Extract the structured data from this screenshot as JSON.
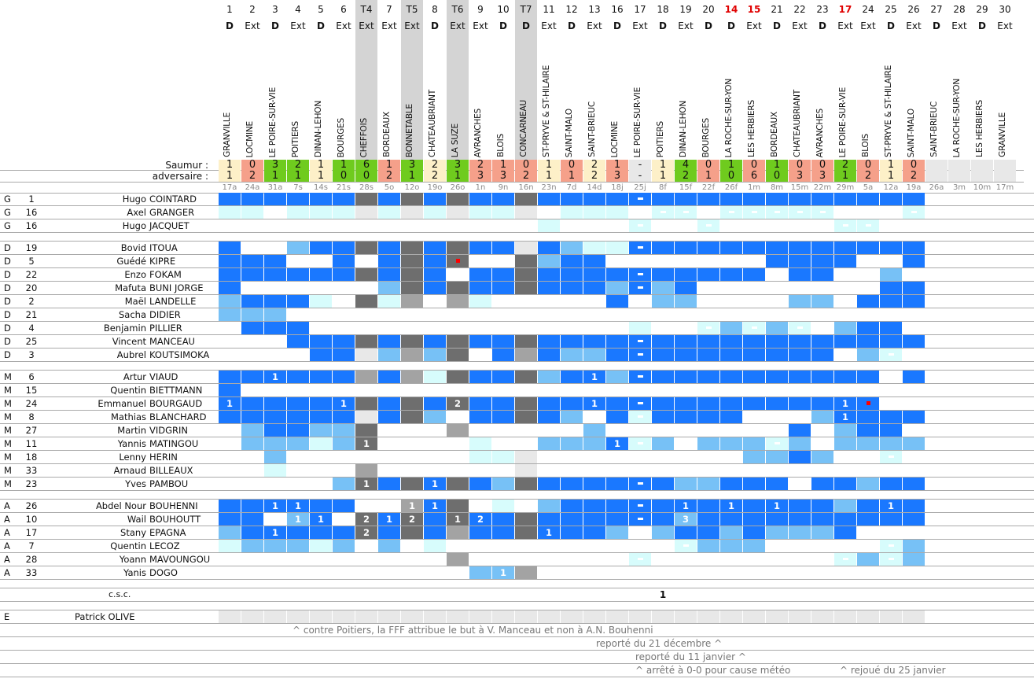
{
  "labels": {
    "saumur": "Saumur :",
    "adversaire": "adversaire :",
    "csc": "c.s.c.",
    "csc_value": "1"
  },
  "colors": {
    "B": "#1a78ff",
    "L": "#77c1f6",
    "C": "#d7fcfc",
    "D": "#6e6e6e",
    "M": "#a3a3a3",
    "E": "#e8e8e8",
    "win": "#6fcb1e",
    "draw": "#fdf0c8",
    "loss": "#f5a08a",
    "none": "#e8e8e8",
    "tour": "#d4d4d4"
  },
  "matches": [
    {
      "num": "1",
      "venue": "D",
      "opp": "GRANVILLE",
      "s": "1",
      "a": "1",
      "date": "17a"
    },
    {
      "num": "2",
      "venue": "Ext",
      "opp": "LOCMINE",
      "s": "0",
      "a": "2",
      "date": "24a"
    },
    {
      "num": "3",
      "venue": "D",
      "opp": "LE POIRE-SUR-VIE",
      "s": "3",
      "a": "1",
      "date": "31a"
    },
    {
      "num": "4",
      "venue": "Ext",
      "opp": "POITIERS",
      "s": "2",
      "a": "1",
      "date": "7s"
    },
    {
      "num": "5",
      "venue": "D",
      "opp": "DINAN-LEHON",
      "s": "1",
      "a": "1",
      "date": "14s"
    },
    {
      "num": "6",
      "venue": "Ext",
      "opp": "BOURGES",
      "s": "1",
      "a": "0",
      "date": "21s"
    },
    {
      "num": "T4",
      "venue": "Ext",
      "opp": "CHEFFOIS",
      "s": "6",
      "a": "0",
      "date": "28s",
      "tour": true
    },
    {
      "num": "7",
      "venue": "Ext",
      "opp": "BORDEAUX",
      "s": "1",
      "a": "2",
      "date": "5o"
    },
    {
      "num": "T5",
      "venue": "Ext",
      "opp": "BONNETABLE",
      "s": "3",
      "a": "1",
      "date": "12o",
      "tour": true
    },
    {
      "num": "8",
      "venue": "D",
      "opp": "CHATEAUBRIANT",
      "s": "2",
      "a": "2",
      "date": "19o"
    },
    {
      "num": "T6",
      "venue": "Ext",
      "opp": "LA SUZE",
      "s": "3",
      "a": "1",
      "date": "26o",
      "tour": true
    },
    {
      "num": "9",
      "venue": "Ext",
      "opp": "AVRANCHES",
      "s": "2",
      "a": "3",
      "date": "1n"
    },
    {
      "num": "10",
      "venue": "D",
      "opp": "BLOIS",
      "s": "1",
      "a": "3",
      "date": "9n"
    },
    {
      "num": "T7",
      "venue": "D",
      "opp": "CONCARNEAU",
      "s": "0",
      "a": "2",
      "date": "16n",
      "tour": true
    },
    {
      "num": "11",
      "venue": "Ext",
      "opp": "ST-PRYVE & ST-HILAIRE",
      "s": "1",
      "a": "1",
      "date": "23n"
    },
    {
      "num": "12",
      "venue": "D",
      "opp": "SAINT-MALO",
      "s": "0",
      "a": "1",
      "date": "7d"
    },
    {
      "num": "13",
      "venue": "Ext",
      "opp": "SAINT-BRIEUC",
      "s": "2",
      "a": "2",
      "date": "14d"
    },
    {
      "num": "16",
      "venue": "D",
      "opp": "LOCMINE",
      "s": "1",
      "a": "3",
      "date": "18j"
    },
    {
      "num": "17",
      "venue": "Ext",
      "opp": "LE POIRE-SUR-VIE",
      "s": "-",
      "a": "-",
      "date": "25j"
    },
    {
      "num": "18",
      "venue": "D",
      "opp": "POITIERS",
      "s": "1",
      "a": "1",
      "date": "8f"
    },
    {
      "num": "19",
      "venue": "Ext",
      "opp": "DINAN-LEHON",
      "s": "4",
      "a": "2",
      "date": "15f"
    },
    {
      "num": "20",
      "venue": "D",
      "opp": "BOURGES",
      "s": "0",
      "a": "1",
      "date": "22f"
    },
    {
      "num": "14",
      "venue": "D",
      "opp": "LA ROCHE-SUR-YON",
      "s": "1",
      "a": "0",
      "date": "26f",
      "red": true
    },
    {
      "num": "15",
      "venue": "Ext",
      "opp": "LES HERBIERS",
      "s": "0",
      "a": "6",
      "date": "1m",
      "red": true
    },
    {
      "num": "21",
      "venue": "D",
      "opp": "BORDEAUX",
      "s": "1",
      "a": "0",
      "date": "8m"
    },
    {
      "num": "22",
      "venue": "Ext",
      "opp": "CHATEAUBRIANT",
      "s": "0",
      "a": "3",
      "date": "15m"
    },
    {
      "num": "23",
      "venue": "D",
      "opp": "AVRANCHES",
      "s": "0",
      "a": "3",
      "date": "22m"
    },
    {
      "num": "17",
      "venue": "Ext",
      "opp": "LE POIRE-SUR-VIE",
      "s": "2",
      "a": "1",
      "date": "29m",
      "red": true
    },
    {
      "num": "24",
      "venue": "Ext",
      "opp": "BLOIS",
      "s": "0",
      "a": "2",
      "date": "5a"
    },
    {
      "num": "25",
      "venue": "D",
      "opp": "ST-PRYVE & ST-HILAIRE",
      "s": "1",
      "a": "1",
      "date": "12a"
    },
    {
      "num": "26",
      "venue": "Ext",
      "opp": "SAINT-MALO",
      "s": "0",
      "a": "2",
      "date": "19a"
    },
    {
      "num": "27",
      "venue": "D",
      "opp": "SAINT-BRIEUC",
      "s": "",
      "a": "",
      "date": "26a"
    },
    {
      "num": "28",
      "venue": "Ext",
      "opp": "LA ROCHE-SUR-YON",
      "s": "",
      "a": "",
      "date": "3m"
    },
    {
      "num": "29",
      "venue": "D",
      "opp": "LES HERBIERS",
      "s": "",
      "a": "",
      "date": "10m"
    },
    {
      "num": "30",
      "venue": "Ext",
      "opp": "GRANVILLE",
      "s": "",
      "a": "",
      "date": "17m"
    }
  ],
  "groups": [
    [
      {
        "pos": "G",
        "num": "1",
        "first": "Hugo",
        "last": "COINTARD",
        "cells": "BBBBBBDBDBDBBDBBBBBBBBBBBBBBBBB",
        "marks": {
          "18": "-"
        }
      },
      {
        "pos": "G",
        "num": "16",
        "first": "Axel",
        "last": "GRANGER",
        "cells": "CC.CCCECECECCE.CCC.CC.CCCCC...C",
        "marks": {
          "19": "-",
          "20": "-",
          "22": "-",
          "23": "-",
          "24": "-",
          "25": "-",
          "26": "-",
          "30": "-"
        }
      },
      {
        "pos": "G",
        "num": "16",
        "first": "Hugo",
        "last": "JACQUET",
        "cells": "..............C...C..C.....CC..",
        "marks": {
          "18": "-",
          "21": "-",
          "27": "-",
          "28": "-"
        }
      }
    ],
    [
      {
        "pos": "D",
        "num": "19",
        "first": "Bovid",
        "last": "ITOUA",
        "cells": "B..LBBDBDBDBBEBLCCBBBBBBBBBBBBB",
        "marks": {
          "18": "-"
        }
      },
      {
        "pos": "D",
        "num": "5",
        "first": "Guédé",
        "last": "KIPRE",
        "cells": "BBB..B.BDBD..DLBB.......BBBB..B",
        "marks": {
          "10": "*"
        }
      },
      {
        "pos": "D",
        "num": "22",
        "first": "Enzo",
        "last": "FOKAM",
        "cells": "BBBBBBDBDB.BBDBBBBBBBBBB.BB..L",
        "marks": {
          "18": "-"
        }
      },
      {
        "pos": "D",
        "num": "20",
        "first": "Mafuta",
        "last": "BUNI JORGE",
        "cells": "B......LDBDBBDBBBLBLB........BB",
        "marks": {
          "18": "-"
        }
      },
      {
        "pos": "D",
        "num": "2",
        "first": "Maël",
        "last": "LANDELLE",
        "cells": "LBBBC.DCM.MC.....B.LL....LL.BBB",
        "marks": {}
      },
      {
        "pos": "D",
        "num": "21",
        "first": "Sacha",
        "last": "DIDIER",
        "cells": "LLL............................",
        "marks": {}
      },
      {
        "pos": "D",
        "num": "4",
        "first": "Benjamin",
        "last": "PILLIER",
        "cells": ".BBB..............C..CLCLC.LBB.",
        "marks": {
          "21": "-",
          "23": "-",
          "25": "-"
        }
      },
      {
        "pos": "D",
        "num": "25",
        "first": "Vincent",
        "last": "MANCEAU",
        "cells": "...BBBDBDBDBBDBBBBBBBBBBBBBBBBB",
        "marks": {
          "18": "-"
        }
      },
      {
        "pos": "D",
        "num": "3",
        "first": "Aubrel",
        "last": "KOUTSIMOKA",
        "cells": "....BBELMLD.BMBLLBBBBBBBBBB.LC.",
        "marks": {
          "18": "-",
          "29": "-"
        }
      }
    ],
    [
      {
        "pos": "M",
        "num": "6",
        "first": "Artur",
        "last": "VIAUD",
        "cells": "BBBBBBMBMCDBBDLBBLBBBBBBBBBBB.B",
        "marks": {
          "2": "1",
          "16": "1",
          "18": "-"
        }
      },
      {
        "pos": "M",
        "num": "15",
        "first": "Quentin",
        "last": "BIETTMANN",
        "cells": "B..............................",
        "marks": {}
      },
      {
        "pos": "M",
        "num": "24",
        "first": "Emmanuel",
        "last": "BOURGAUD",
        "cells": "BBBBBBDBDBDBBDBBBBBBBBBBBBBBB..",
        "marks": {
          "0": "1",
          "5": "1",
          "10": "2",
          "16": "1",
          "18": "-",
          "27": "1",
          "28": "*"
        }
      },
      {
        "pos": "M",
        "num": "8",
        "first": "Mathias",
        "last": "BLANCHARD",
        "cells": "BBBBBBEBDL.BBDBL.BCBBBB...LBBBB",
        "marks": {
          "18": "-",
          "27": "1"
        }
      },
      {
        "pos": "M",
        "num": "27",
        "first": "Martin",
        "last": "VIDGRIN",
        "cells": ".LBBLLD...M.....L........B.LBB.",
        "marks": {}
      },
      {
        "pos": "M",
        "num": "11",
        "first": "Yannis",
        "last": "MATINGOU",
        "cells": ".LLLCLD....C..LLLBCL.LLLCL.LLLL",
        "marks": {
          "6": "1",
          "17": "1",
          "18": "-",
          "24": "-"
        }
      },
      {
        "pos": "M",
        "num": "18",
        "first": "Lenny",
        "last": "HERIN",
        "cells": "..L........CCE.........LLBL..C.",
        "marks": {
          "29": "-"
        }
      },
      {
        "pos": "M",
        "num": "33",
        "first": "Arnaud",
        "last": "BILLEAUX",
        "cells": "..C...M......E.................",
        "marks": {}
      },
      {
        "pos": "M",
        "num": "23",
        "first": "Yves",
        "last": "PAMBOU",
        "cells": ".....LDBDBDBLDBBBBBBLLBBB.BBLBB",
        "marks": {
          "6": "1",
          "9": "1",
          "18": "-"
        }
      }
    ],
    [
      {
        "pos": "A",
        "num": "26",
        "first": "Abdel Nour",
        "last": "BOUHENNI",
        "cells": "BBBBBB..MBD.C.LBBBBBBBBBBBBLBBB",
        "marks": {
          "2": "1",
          "3": "1",
          "8": "1",
          "9": "1",
          "18": "-",
          "20": "1",
          "22": "1",
          "24": "1",
          "29": "1"
        }
      },
      {
        "pos": "A",
        "num": "10",
        "first": "Wail",
        "last": "BOUHOUTT",
        "cells": "BB.LB.DBDBDBBDBBBBBBLBBBBBBBBBB",
        "marks": {
          "3": "1",
          "4": "1",
          "6": "2",
          "7": "1",
          "8": "2",
          "10": "1",
          "11": "2",
          "18": "-",
          "20": "3"
        }
      },
      {
        "pos": "A",
        "num": "17",
        "first": "Stany",
        "last": "EPAGNA",
        "cells": "LBBBBBDBDBMBBDBBBL.LBBLBLLLB...",
        "marks": {
          "2": "1",
          "6": "2",
          "14": "1"
        }
      },
      {
        "pos": "A",
        "num": "7",
        "first": "Quentin",
        "last": "LECOZ",
        "cells": "CLLLCL.L.C..........CLLL.....CL",
        "marks": {
          "20": "-",
          "29": "-"
        }
      },
      {
        "pos": "A",
        "num": "28",
        "first": "Yoann",
        "last": "MAVOUNGOU",
        "cells": "..........M.......C........CLCL",
        "marks": {
          "18": "-",
          "27": "-",
          "29": "-"
        }
      },
      {
        "pos": "A",
        "num": "33",
        "first": "Yanis",
        "last": "DOGO",
        "cells": "...........LLM.................",
        "marks": {
          "12": "1"
        }
      }
    ]
  ],
  "csc_match_index": 19,
  "staff": {
    "pos": "E",
    "name": "Patrick OLIVE",
    "cells": "EEEEEEEEEEEEEEEEEEEEEEEEEEEEEEE"
  },
  "notes": [
    [
      "^ contre Poitiers, la FFF attribue le but à V. Manceau et non à A.N. Bouhenni"
    ],
    [
      "reporté du 21 décembre ^"
    ],
    [
      "reporté du 11 janvier ^"
    ],
    [
      "^ arrêté à 0-0 pour cause météo",
      "^ rejoué du 25 janvier"
    ]
  ]
}
